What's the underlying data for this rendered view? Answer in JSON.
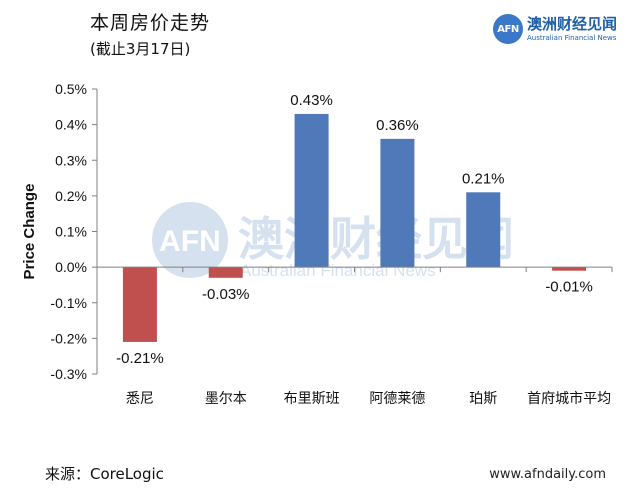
{
  "header": {
    "title": "本周房价走势",
    "subtitle": "(截止3月17日)"
  },
  "logo": {
    "mark": "AFN",
    "name_cn": "澳洲财经见闻",
    "name_en": "Australian Financial News"
  },
  "watermark": {
    "mark": "AFN",
    "name_cn": "澳洲财经见闻",
    "name_en": "Australian Financial News"
  },
  "footer": {
    "source": "来源：CoreLogic",
    "site": "www.afndaily.com"
  },
  "colors": {
    "positive": "#4f79b8",
    "negative": "#c0504d",
    "brand": "#1f5fa8"
  },
  "chart_data": {
    "type": "bar",
    "title": "",
    "xlabel": "",
    "ylabel": "Price Change",
    "ylim": [
      -0.3,
      0.5
    ],
    "yticks": [
      -0.3,
      -0.2,
      -0.1,
      0.0,
      0.1,
      0.2,
      0.3,
      0.4,
      0.5
    ],
    "tick_labels": [
      "-0.3%",
      "-0.2%",
      "-0.1%",
      "0.0%",
      "0.1%",
      "0.2%",
      "0.3%",
      "0.4%",
      "0.5%"
    ],
    "categories": [
      "悉尼",
      "墨尔本",
      "布里斯班",
      "阿德莱德",
      "珀斯",
      "首府城市平均"
    ],
    "values": [
      -0.21,
      -0.03,
      0.43,
      0.36,
      0.21,
      -0.01
    ],
    "data_labels": [
      "-0.21%",
      "-0.03%",
      "0.43%",
      "0.36%",
      "0.21%",
      "-0.01%"
    ],
    "grid": false,
    "legend": "none"
  }
}
